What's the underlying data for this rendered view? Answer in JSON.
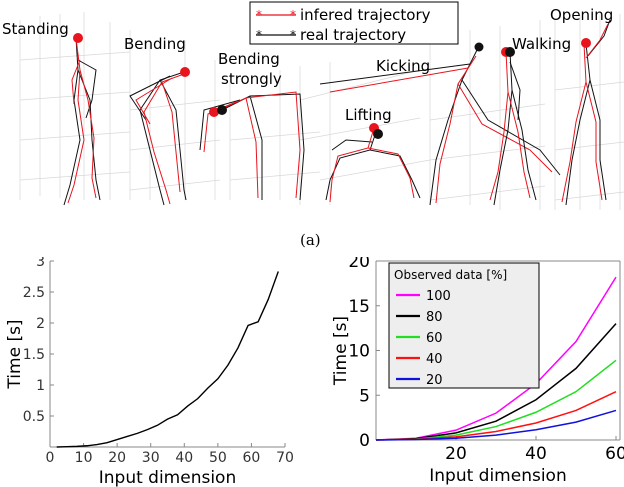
{
  "figure": {
    "caption": "(a)",
    "legend": {
      "infered": "infered trajectory",
      "real": "real trajectory"
    },
    "poses": [
      "Standing",
      "Bending",
      "Bending strongly",
      "Lifting",
      "Kicking",
      "Walking",
      "Opening"
    ],
    "colors": {
      "infered": "#e8141e",
      "real": "#111111"
    }
  },
  "chart_data": [
    {
      "type": "line",
      "xlabel": "Input dimension",
      "ylabel": "Time [s]",
      "xlim": [
        0,
        70
      ],
      "ylim": [
        0,
        3
      ],
      "xticks": [
        0,
        10,
        20,
        30,
        40,
        50,
        60,
        70
      ],
      "yticks": [
        0.5,
        1,
        1.5,
        2,
        2.5,
        3
      ],
      "series": [
        {
          "color": "#000000",
          "x": [
            2,
            5,
            8,
            11,
            14,
            17,
            20,
            23,
            26,
            29,
            32,
            35,
            38,
            41,
            44,
            47,
            50,
            53,
            56,
            59,
            62,
            65,
            68
          ],
          "y": [
            0.0,
            0.005,
            0.01,
            0.02,
            0.04,
            0.07,
            0.12,
            0.17,
            0.22,
            0.28,
            0.35,
            0.45,
            0.52,
            0.66,
            0.78,
            0.95,
            1.1,
            1.32,
            1.6,
            1.96,
            2.02,
            2.38,
            2.83
          ]
        }
      ]
    },
    {
      "type": "line",
      "xlabel": "Input dimension",
      "ylabel": "Time [s]",
      "xlim": [
        0,
        61
      ],
      "ylim": [
        0,
        20
      ],
      "xticks": [
        20,
        40,
        60
      ],
      "yticks": [
        0,
        5,
        10,
        15,
        20
      ],
      "legend_title": "Observed data [%]",
      "legend_position": "top-left",
      "x": [
        0,
        10,
        20,
        30,
        40,
        50,
        60
      ],
      "series": [
        {
          "name": "100",
          "color": "#ff00ff",
          "y": [
            0,
            0.2,
            1.1,
            3.0,
            6.3,
            11.0,
            18.2
          ]
        },
        {
          "name": "80",
          "color": "#000000",
          "y": [
            0,
            0.15,
            0.8,
            2.1,
            4.5,
            8.0,
            13.0
          ]
        },
        {
          "name": "60",
          "color": "#22dd22",
          "y": [
            0,
            0.1,
            0.55,
            1.5,
            3.1,
            5.4,
            8.9
          ]
        },
        {
          "name": "40",
          "color": "#ff1111",
          "y": [
            0,
            0.08,
            0.35,
            0.95,
            1.9,
            3.3,
            5.4
          ]
        },
        {
          "name": "20",
          "color": "#1111dd",
          "y": [
            0,
            0.05,
            0.2,
            0.55,
            1.15,
            2.0,
            3.3
          ]
        }
      ]
    }
  ]
}
